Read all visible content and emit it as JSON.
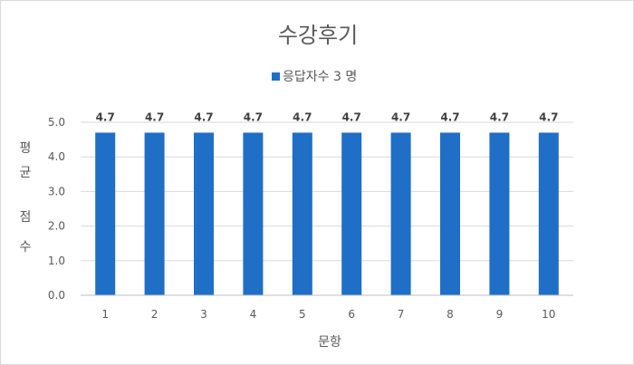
{
  "chart_data": {
    "type": "bar",
    "title": "수강후기",
    "legend": {
      "position": "top",
      "label": "응답자수 3 명"
    },
    "xlabel": "문항",
    "ylabel": [
      "평",
      "균",
      "점",
      "수"
    ],
    "categories": [
      "1",
      "2",
      "3",
      "4",
      "5",
      "6",
      "7",
      "8",
      "9",
      "10"
    ],
    "series": [
      {
        "name": "응답자수 3 명",
        "values": [
          4.7,
          4.7,
          4.7,
          4.7,
          4.7,
          4.7,
          4.7,
          4.7,
          4.7,
          4.7
        ]
      }
    ],
    "data_labels": [
      "4.7",
      "4.7",
      "4.7",
      "4.7",
      "4.7",
      "4.7",
      "4.7",
      "4.7",
      "4.7",
      "4.7"
    ],
    "ylim": [
      0,
      5
    ],
    "yticks": [
      "0.0",
      "1.0",
      "2.0",
      "3.0",
      "4.0",
      "5.0"
    ],
    "grid": true,
    "colors": {
      "bar": "#1f6fc6",
      "grid": "#d9d9d9",
      "axis": "#bfbfbf"
    }
  }
}
